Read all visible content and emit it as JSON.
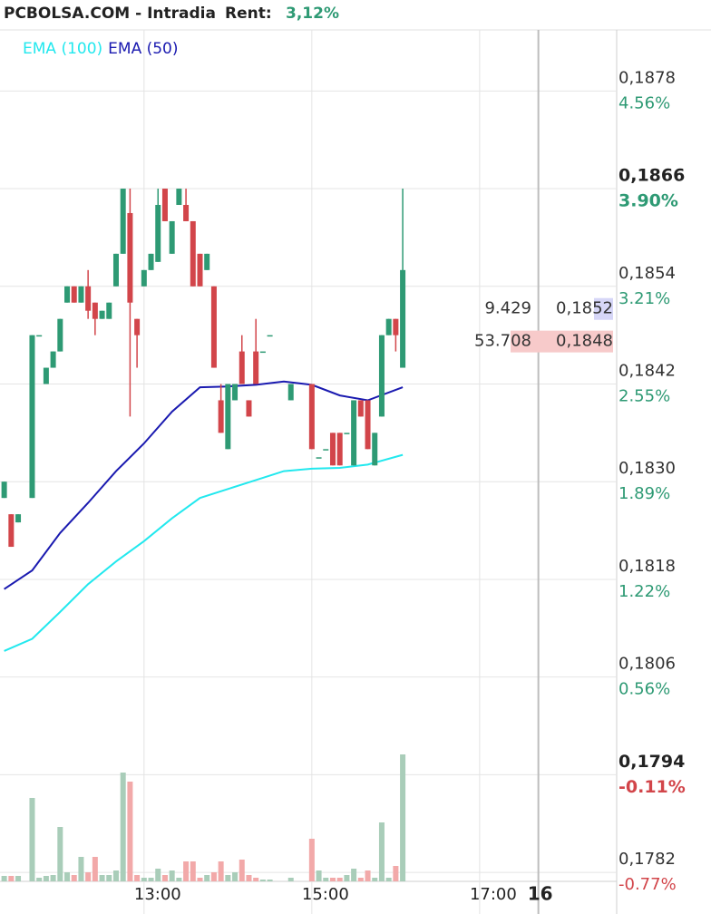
{
  "chart_data": {
    "type": "candlestick",
    "title": "PCBOLSA.COM - Intradia",
    "return_label": "Rent:",
    "return_value": "3,12%",
    "x": [
      "11:20",
      "11:25",
      "11:30",
      "11:40",
      "11:45",
      "11:50",
      "11:55",
      "12:00",
      "12:05",
      "12:10",
      "12:15",
      "12:20",
      "12:25",
      "12:30",
      "12:35",
      "12:40",
      "12:45",
      "12:50",
      "12:55",
      "13:00",
      "13:05",
      "13:10",
      "13:15",
      "13:20",
      "13:25",
      "13:30",
      "13:35",
      "13:40",
      "13:45",
      "13:50",
      "13:55",
      "14:00",
      "14:05",
      "14:10",
      "14:15",
      "14:20",
      "14:25",
      "14:30",
      "14:45",
      "15:00",
      "15:05",
      "15:10",
      "15:15",
      "15:20",
      "15:25",
      "15:30",
      "15:35",
      "15:40",
      "15:45",
      "15:50",
      "15:55",
      "16:00",
      "16:05"
    ],
    "open": [
      0.1828,
      0.1826,
      0.1825,
      0.1828,
      0.1848,
      0.1842,
      0.1844,
      0.1846,
      0.1852,
      0.1854,
      0.1852,
      0.1854,
      0.1852,
      0.185,
      0.185,
      0.1854,
      0.1858,
      0.1863,
      0.185,
      0.1854,
      0.1856,
      0.1857,
      0.1866,
      0.1858,
      0.1864,
      0.1864,
      0.1862,
      0.1858,
      0.1856,
      0.1854,
      0.184,
      0.1834,
      0.184,
      0.1846,
      0.184,
      0.1846,
      0.1846,
      0.1848,
      0.184,
      0.1842,
      0.1833,
      0.1834,
      0.1836,
      0.1836,
      0.1836,
      0.1832,
      0.184,
      0.184,
      0.1832,
      0.1838,
      0.1848,
      0.185,
      0.1844
    ],
    "high": [
      0.183,
      0.1826,
      0.1826,
      0.1848,
      0.1848,
      0.1844,
      0.1846,
      0.185,
      0.1854,
      0.1854,
      0.1854,
      0.1856,
      0.1852,
      0.1851,
      0.1852,
      0.1858,
      0.1866,
      0.1866,
      0.185,
      0.1856,
      0.1858,
      0.1866,
      0.1866,
      0.1862,
      0.1866,
      0.1866,
      0.1862,
      0.1858,
      0.1858,
      0.1854,
      0.1842,
      0.1842,
      0.1842,
      0.1848,
      0.184,
      0.185,
      0.1846,
      0.1848,
      0.1842,
      0.1842,
      0.1833,
      0.1834,
      0.1836,
      0.1836,
      0.1836,
      0.184,
      0.184,
      0.184,
      0.1836,
      0.1848,
      0.185,
      0.185,
      0.1866
    ],
    "low": [
      0.1828,
      0.1822,
      0.1825,
      0.1828,
      0.1848,
      0.1842,
      0.1844,
      0.1846,
      0.1852,
      0.1852,
      0.1852,
      0.185,
      0.1848,
      0.185,
      0.185,
      0.1854,
      0.1858,
      0.1838,
      0.1844,
      0.1854,
      0.1856,
      0.1857,
      0.1862,
      0.1858,
      0.1864,
      0.1862,
      0.1854,
      0.1854,
      0.1856,
      0.1844,
      0.1836,
      0.1834,
      0.184,
      0.1842,
      0.1838,
      0.1842,
      0.1846,
      0.1848,
      0.184,
      0.1834,
      0.1833,
      0.1834,
      0.1832,
      0.1832,
      0.1836,
      0.1832,
      0.1838,
      0.1834,
      0.1832,
      0.1838,
      0.1848,
      0.1846,
      0.1844
    ],
    "close": [
      0.183,
      0.1822,
      0.1826,
      0.1848,
      0.1848,
      0.1844,
      0.1846,
      0.185,
      0.1854,
      0.1852,
      0.1854,
      0.1851,
      0.185,
      0.1851,
      0.1852,
      0.1858,
      0.1866,
      0.1852,
      0.1848,
      0.1856,
      0.1858,
      0.1864,
      0.1862,
      0.1862,
      0.1866,
      0.1862,
      0.1854,
      0.1854,
      0.1858,
      0.1844,
      0.1836,
      0.1842,
      0.1842,
      0.1842,
      0.1838,
      0.1842,
      0.1846,
      0.1848,
      0.1842,
      0.1834,
      0.1833,
      0.1834,
      0.1832,
      0.1832,
      0.1836,
      0.184,
      0.1838,
      0.1834,
      0.1836,
      0.1848,
      0.185,
      0.1848,
      0.1856
    ],
    "volume": [
      6,
      6,
      6,
      92,
      4,
      6,
      7,
      60,
      10,
      7,
      27,
      10,
      27,
      7,
      7,
      12,
      120,
      110,
      7,
      4,
      4,
      14,
      7,
      12,
      4,
      22,
      22,
      4,
      7,
      10,
      22,
      7,
      10,
      24,
      7,
      4,
      2,
      2,
      4,
      47,
      12,
      4,
      4,
      4,
      7,
      14,
      4,
      12,
      4,
      65,
      4,
      17,
      140
    ],
    "volume_ylim": [
      0,
      200
    ],
    "up_color": "#2e9a74",
    "down_color": "#d2454a",
    "volume_up_color": "#a9cdb9",
    "volume_down_color": "#f2a9a9",
    "series": [
      {
        "name": "EMA (100)",
        "color": "#22e8ee",
        "x": [
          "11:20",
          "11:40",
          "12:00",
          "12:20",
          "12:40",
          "13:00",
          "13:20",
          "13:40",
          "14:00",
          "14:20",
          "14:40",
          "15:00",
          "15:20",
          "15:40",
          "16:05"
        ],
        "values": [
          0.18092,
          0.18107,
          0.1814,
          0.18174,
          0.18202,
          0.18227,
          0.18255,
          0.1828,
          0.18291,
          0.18302,
          0.18313,
          0.18316,
          0.18317,
          0.18321,
          0.18333
        ]
      },
      {
        "name": "EMA (50)",
        "color": "#1a1ab0",
        "x": [
          "11:20",
          "11:40",
          "12:00",
          "12:20",
          "12:40",
          "13:00",
          "13:20",
          "13:40",
          "14:00",
          "14:20",
          "14:40",
          "15:00",
          "15:20",
          "15:40",
          "16:05"
        ],
        "values": [
          0.18168,
          0.18191,
          0.18237,
          0.18274,
          0.18313,
          0.18347,
          0.18386,
          0.18416,
          0.18417,
          0.18419,
          0.18423,
          0.18419,
          0.18406,
          0.184,
          0.18416
        ]
      }
    ],
    "xlim": [
      "11:17",
      "18:38"
    ],
    "xticks": [
      {
        "value": "13:00",
        "label": "13:00"
      },
      {
        "value": "15:00",
        "label": "15:00"
      },
      {
        "value": "17:00",
        "label": "17:00"
      },
      {
        "value": "17:42",
        "label": "16"
      }
    ],
    "ylim": [
      0.17809,
      0.18855
    ],
    "yticks": [
      {
        "value": 0.1878,
        "label": "0,1878"
      },
      {
        "value": 0.1866,
        "label": "0,1866"
      },
      {
        "value": 0.1854,
        "label": "0,1854"
      },
      {
        "value": 0.1842,
        "label": "0,1842"
      },
      {
        "value": 0.183,
        "label": "0,1830"
      },
      {
        "value": 0.1818,
        "label": "0,1818"
      },
      {
        "value": 0.1806,
        "label": "0,1806"
      },
      {
        "value": 0.1794,
        "label": "0,1794"
      },
      {
        "value": 0.1782,
        "label": "0,1782"
      }
    ],
    "yticks_pct": [
      {
        "value": 4.56,
        "label": "4.56%"
      },
      {
        "value": 3.9,
        "label": "3.90%"
      },
      {
        "value": 3.21,
        "label": "3.21%"
      },
      {
        "value": 2.55,
        "label": "2.55%"
      },
      {
        "value": 1.89,
        "label": "1.89%"
      },
      {
        "value": 1.22,
        "label": "1.22%"
      },
      {
        "value": 0.56,
        "label": "0.56%"
      },
      {
        "value": -0.11,
        "label": "-0.11%"
      },
      {
        "value": -0.77,
        "label": "-0.77%"
      }
    ],
    "bold_tick_indices": [
      1,
      7
    ],
    "grid": true,
    "quotes": [
      {
        "qty": "9.429",
        "price": {
          "value": 0.1852,
          "label": "0,1852"
        },
        "color": "#d6d6f7"
      },
      {
        "qty": "53.708",
        "price": {
          "value": 0.1848,
          "label": "0,1848"
        },
        "color": "#f7caca"
      }
    ]
  }
}
